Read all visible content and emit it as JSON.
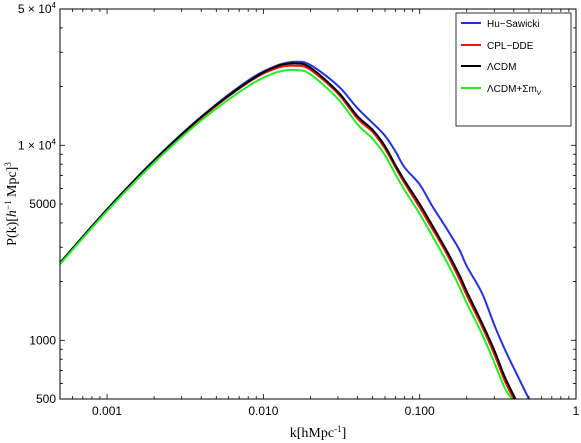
{
  "chart_data": {
    "type": "line",
    "xscale": "log",
    "yscale": "log",
    "xlim": [
      0.0005,
      1
    ],
    "ylim": [
      500,
      50000
    ],
    "xlabel_pre": "k[hMpc",
    "xlabel_sup": "-1",
    "xlabel_post": "]",
    "ylabel_pre": "P(k)[",
    "ylabel_h": "h",
    "ylabel_sup1": "−1",
    "ylabel_mid": " Mpc]",
    "ylabel_sup2": "3",
    "x_ticks": [
      {
        "value": 0.001,
        "label": "0.001"
      },
      {
        "value": 0.01,
        "label": "0.010"
      },
      {
        "value": 0.1,
        "label": "0.100"
      },
      {
        "value": 1,
        "label": "1"
      }
    ],
    "y_ticks": [
      {
        "value": 500,
        "label": "500"
      },
      {
        "value": 1000,
        "label": "1000"
      },
      {
        "value": 5000,
        "label": "5000"
      },
      {
        "value": 10000,
        "label": "1 × 10",
        "exp": "4"
      },
      {
        "value": 50000,
        "label": "5 × 10",
        "exp": "4"
      }
    ],
    "grid": false,
    "legend_position": "top-right",
    "series": [
      {
        "name": "Hu−Sawicki",
        "color": "#2233dd",
        "x": [
          0.0005,
          0.001,
          0.002,
          0.004,
          0.008,
          0.012,
          0.016,
          0.02,
          0.03,
          0.04,
          0.05,
          0.06,
          0.07,
          0.08,
          0.1,
          0.12,
          0.15,
          0.18,
          0.2,
          0.25,
          0.3,
          0.35,
          0.4,
          0.5
        ],
        "y": [
          2500,
          4700,
          8400,
          14000,
          21500,
          25500,
          26800,
          25800,
          20200,
          15500,
          13000,
          11200,
          9300,
          7700,
          6300,
          4900,
          3700,
          2900,
          2400,
          1750,
          1200,
          900,
          720,
          500
        ]
      },
      {
        "name": "CPL−DDE",
        "color": "#ee1111",
        "x": [
          0.0005,
          0.001,
          0.002,
          0.004,
          0.008,
          0.012,
          0.016,
          0.02,
          0.03,
          0.04,
          0.05,
          0.06,
          0.07,
          0.08,
          0.1,
          0.12,
          0.15,
          0.18,
          0.2,
          0.25,
          0.3,
          0.35,
          0.4
        ],
        "y": [
          2480,
          4650,
          8300,
          13800,
          21000,
          24800,
          25600,
          24400,
          18400,
          13700,
          11700,
          9600,
          7700,
          6400,
          4800,
          3750,
          2750,
          2050,
          1700,
          1180,
          850,
          620,
          500
        ]
      },
      {
        "name": "ΛCDM",
        "color": "#000000",
        "x": [
          0.0005,
          0.001,
          0.002,
          0.004,
          0.008,
          0.012,
          0.016,
          0.02,
          0.03,
          0.04,
          0.05,
          0.06,
          0.07,
          0.08,
          0.1,
          0.12,
          0.15,
          0.18,
          0.2,
          0.25,
          0.3,
          0.35,
          0.41
        ],
        "y": [
          2490,
          4680,
          8350,
          13950,
          21200,
          25300,
          26300,
          25000,
          18800,
          14100,
          12000,
          9900,
          7900,
          6600,
          5000,
          3900,
          2850,
          2150,
          1780,
          1230,
          890,
          650,
          500
        ]
      },
      {
        "name": "ΛCDM+Σm",
        "name_sub": "ν",
        "color": "#22ee22",
        "x": [
          0.0005,
          0.001,
          0.002,
          0.004,
          0.008,
          0.012,
          0.016,
          0.02,
          0.03,
          0.04,
          0.05,
          0.06,
          0.07,
          0.08,
          0.1,
          0.12,
          0.15,
          0.18,
          0.2,
          0.25,
          0.3,
          0.35,
          0.39
        ],
        "y": [
          2460,
          4600,
          8150,
          13400,
          20100,
          23600,
          24300,
          23100,
          17300,
          12800,
          10800,
          8900,
          7100,
          5900,
          4450,
          3450,
          2500,
          1870,
          1550,
          1080,
          770,
          570,
          500
        ]
      }
    ]
  }
}
